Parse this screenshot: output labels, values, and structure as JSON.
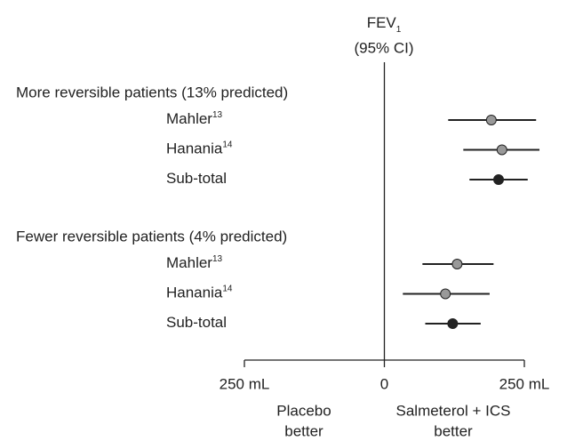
{
  "chart_data": {
    "type": "forest",
    "title": {
      "main": "FEV",
      "sub": "1",
      "ci": "(95% CI)"
    },
    "groups": [
      {
        "label": "More reversible patients (13% predicted)",
        "rows": [
          {
            "name": "Mahler",
            "ref": "13",
            "value": 191,
            "low": 114,
            "high": 271,
            "color": "#999999"
          },
          {
            "name": "Hanania",
            "ref": "14",
            "value": 210,
            "low": 141,
            "high": 277,
            "color": "#999999"
          },
          {
            "name": "Sub-total",
            "value": 204,
            "low": 152,
            "high": 256,
            "color": "#222222"
          }
        ]
      },
      {
        "label": "Fewer reversible patients (4% predicted)",
        "rows": [
          {
            "name": "Mahler",
            "ref": "13",
            "value": 130,
            "low": 68,
            "high": 195,
            "color": "#999999"
          },
          {
            "name": "Hanania",
            "ref": "14",
            "value": 109,
            "low": 33,
            "high": 188,
            "color": "#999999"
          },
          {
            "name": "Sub-total",
            "value": 122,
            "low": 73,
            "high": 172,
            "color": "#222222"
          }
        ]
      }
    ],
    "xlim": [
      -250,
      250
    ],
    "xticks": [
      {
        "value": -250,
        "label": "250 mL"
      },
      0,
      {
        "value": 250,
        "label": "250 mL"
      }
    ],
    "favors_left": [
      "Placebo",
      "better"
    ],
    "favors_right": [
      "Salmeterol + ICS",
      "better"
    ]
  }
}
